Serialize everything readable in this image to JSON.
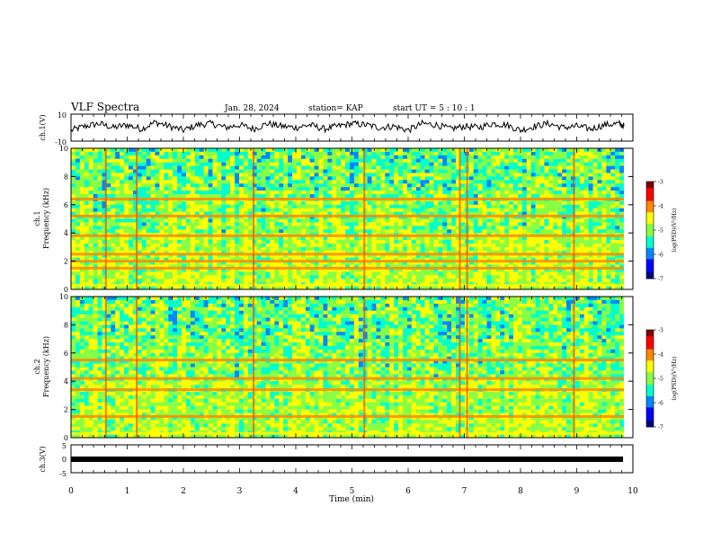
{
  "header": {
    "title": "VLF Spectra",
    "date": "Jan. 28, 2024",
    "station": "station= KAP",
    "start": "start  UT  =   5  : 10 : 1"
  },
  "colorbar": {
    "label": "log(PSD)(V²/Hz)",
    "ticks": [
      "-3",
      "-4",
      "-5",
      "-6",
      "-7"
    ],
    "colors": [
      "#7f0000",
      "#ff0000",
      "#ff8800",
      "#ffff00",
      "#88ff44",
      "#00ffcc",
      "#0088ff",
      "#0000ff",
      "#00007f"
    ]
  },
  "chart_data": [
    {
      "type": "line",
      "name": "ch1-waveform",
      "ylabel": "ch.1(V)",
      "ylim": [
        -10,
        10
      ],
      "yticks": [
        "10",
        "-10"
      ],
      "x": [
        0,
        0.25,
        0.5,
        0.75,
        1,
        1.25,
        1.5,
        1.75,
        2,
        2.25,
        2.5,
        2.75,
        3,
        3.25,
        3.5,
        3.75,
        4,
        4.25,
        4.5,
        4.75,
        5,
        5.25,
        5.5,
        5.75,
        6,
        6.25,
        6.5,
        6.75,
        7,
        7.25,
        7.5,
        7.75,
        8,
        8.25,
        8.5,
        8.75,
        9,
        9.25,
        9.5,
        9.75,
        9.85
      ],
      "y": [
        -2,
        1,
        3,
        0,
        2,
        -1,
        4,
        1,
        -2,
        2,
        3,
        0,
        2,
        -1,
        3,
        1,
        0,
        2,
        -1,
        1,
        3,
        2,
        0,
        1,
        -2,
        3,
        2,
        -1,
        1,
        0,
        3,
        2,
        -2,
        1,
        3,
        0,
        1,
        -1,
        2,
        3,
        1
      ],
      "xlim": [
        0,
        10
      ]
    },
    {
      "type": "heatmap",
      "name": "ch1-spectrogram",
      "ylabel": "ch.1\nFrequency (kHz)",
      "ylim": [
        0,
        10
      ],
      "yticks": [
        "0",
        "2",
        "4",
        "6",
        "8",
        "10"
      ],
      "xlim": [
        0,
        10
      ],
      "colorscale": "log(PSD)(V²/Hz)",
      "zlim": [
        -7,
        -3
      ],
      "lines_khz": [
        0.3,
        1.5,
        2.0,
        2.5,
        3.8,
        5.2,
        6.4
      ],
      "bursts_min": [
        0.62,
        1.17,
        3.25,
        5.22,
        6.92,
        7.05,
        8.95
      ]
    },
    {
      "type": "heatmap",
      "name": "ch2-spectrogram",
      "ylabel": "ch.2\nFrequency (kHz)",
      "ylim": [
        0,
        10
      ],
      "yticks": [
        "0",
        "2",
        "4",
        "6",
        "8",
        "10"
      ],
      "xlim": [
        0,
        10
      ],
      "colorscale": "log(PSD)(V²/Hz)",
      "zlim": [
        -7,
        -3
      ],
      "lines_khz": [
        0.3,
        1.5,
        3.4,
        4.2,
        5.5
      ],
      "bursts_min": [
        0.62,
        1.17,
        3.25,
        5.22,
        6.92,
        7.05,
        8.95
      ]
    },
    {
      "type": "line",
      "name": "ch3-waveform",
      "ylabel": "ch.3(V)",
      "ylim": [
        -5,
        5
      ],
      "yticks": [
        "5",
        "0",
        "-5"
      ],
      "xlim": [
        0,
        10
      ],
      "x": [
        0,
        9.85
      ],
      "y": [
        -0.3,
        -0.3
      ],
      "xlabel": "Time  (min)",
      "xticks": [
        "0",
        "1",
        "2",
        "3",
        "4",
        "5",
        "6",
        "7",
        "8",
        "9",
        "10"
      ]
    }
  ]
}
